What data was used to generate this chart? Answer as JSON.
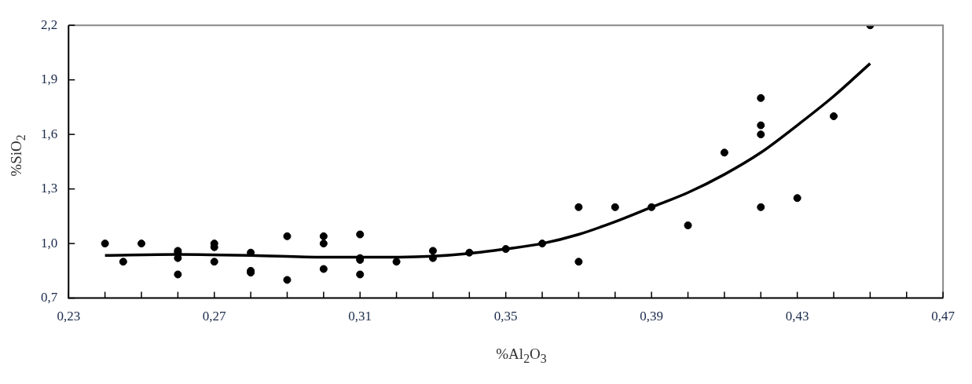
{
  "chart_data": {
    "type": "scatter",
    "xlabel": "%Al$_{2}$O$_{3}$",
    "ylabel": "%SiO$_{2}$",
    "xlim": [
      0.23,
      0.47
    ],
    "xticks": [
      {
        "value": 0.23,
        "label": "0,23"
      },
      {
        "value": 0.24,
        "label": null
      },
      {
        "value": 0.25,
        "label": null
      },
      {
        "value": 0.26,
        "label": null
      },
      {
        "value": 0.27,
        "label": "0,27"
      },
      {
        "value": 0.28,
        "label": null
      },
      {
        "value": 0.29,
        "label": null
      },
      {
        "value": 0.3,
        "label": null
      },
      {
        "value": 0.31,
        "label": "0,31"
      },
      {
        "value": 0.32,
        "label": null
      },
      {
        "value": 0.33,
        "label": null
      },
      {
        "value": 0.34,
        "label": null
      },
      {
        "value": 0.35,
        "label": "0,35"
      },
      {
        "value": 0.36,
        "label": null
      },
      {
        "value": 0.37,
        "label": null
      },
      {
        "value": 0.38,
        "label": null
      },
      {
        "value": 0.39,
        "label": "0,39"
      },
      {
        "value": 0.4,
        "label": null
      },
      {
        "value": 0.41,
        "label": null
      },
      {
        "value": 0.42,
        "label": null
      },
      {
        "value": 0.43,
        "label": "0,43"
      },
      {
        "value": 0.44,
        "label": null
      },
      {
        "value": 0.45,
        "label": null
      },
      {
        "value": 0.46,
        "label": null
      },
      {
        "value": 0.47,
        "label": "0,47"
      }
    ],
    "ylim": [
      0.7,
      2.2
    ],
    "yticks": [
      {
        "value": 0.7,
        "label": "0,7"
      },
      {
        "value": 1.0,
        "label": "1,0"
      },
      {
        "value": 1.3,
        "label": "1,3"
      },
      {
        "value": 1.6,
        "label": "1,6"
      },
      {
        "value": 1.9,
        "label": "1,9"
      },
      {
        "value": 2.2,
        "label": "2,2"
      }
    ],
    "grid": false,
    "legend": false,
    "series": [
      {
        "type": "scatter",
        "color": "#000000",
        "marker": "circle",
        "x": [
          0.24,
          0.245,
          0.25,
          0.26,
          0.26,
          0.26,
          0.26,
          0.27,
          0.27,
          0.27,
          0.28,
          0.28,
          0.28,
          0.29,
          0.29,
          0.3,
          0.3,
          0.3,
          0.31,
          0.31,
          0.31,
          0.31,
          0.32,
          0.33,
          0.33,
          0.34,
          0.35,
          0.36,
          0.37,
          0.37,
          0.38,
          0.39,
          0.4,
          0.41,
          0.42,
          0.42,
          0.42,
          0.42,
          0.43,
          0.44,
          0.45
        ],
        "values": [
          1.0,
          0.9,
          1.0,
          0.96,
          0.95,
          0.92,
          0.83,
          1.0,
          0.98,
          0.9,
          0.95,
          0.85,
          0.84,
          1.04,
          0.8,
          1.04,
          1.0,
          0.86,
          1.05,
          0.92,
          0.91,
          0.83,
          0.9,
          0.96,
          0.92,
          0.95,
          0.97,
          1.0,
          1.2,
          0.9,
          1.2,
          1.2,
          1.1,
          1.5,
          1.8,
          1.65,
          1.6,
          1.2,
          1.25,
          1.7,
          2.2
        ]
      },
      {
        "type": "line",
        "color": "#000000",
        "marker": "none",
        "line_style": "solid",
        "x": [
          0.24,
          0.26,
          0.28,
          0.3,
          0.32,
          0.33,
          0.34,
          0.35,
          0.36,
          0.37,
          0.38,
          0.39,
          0.4,
          0.41,
          0.42,
          0.43,
          0.44,
          0.45
        ],
        "values": [
          0.935,
          0.94,
          0.935,
          0.925,
          0.925,
          0.93,
          0.945,
          0.97,
          1.0,
          1.05,
          1.12,
          1.2,
          1.28,
          1.38,
          1.5,
          1.65,
          1.81,
          1.99
        ]
      }
    ]
  }
}
